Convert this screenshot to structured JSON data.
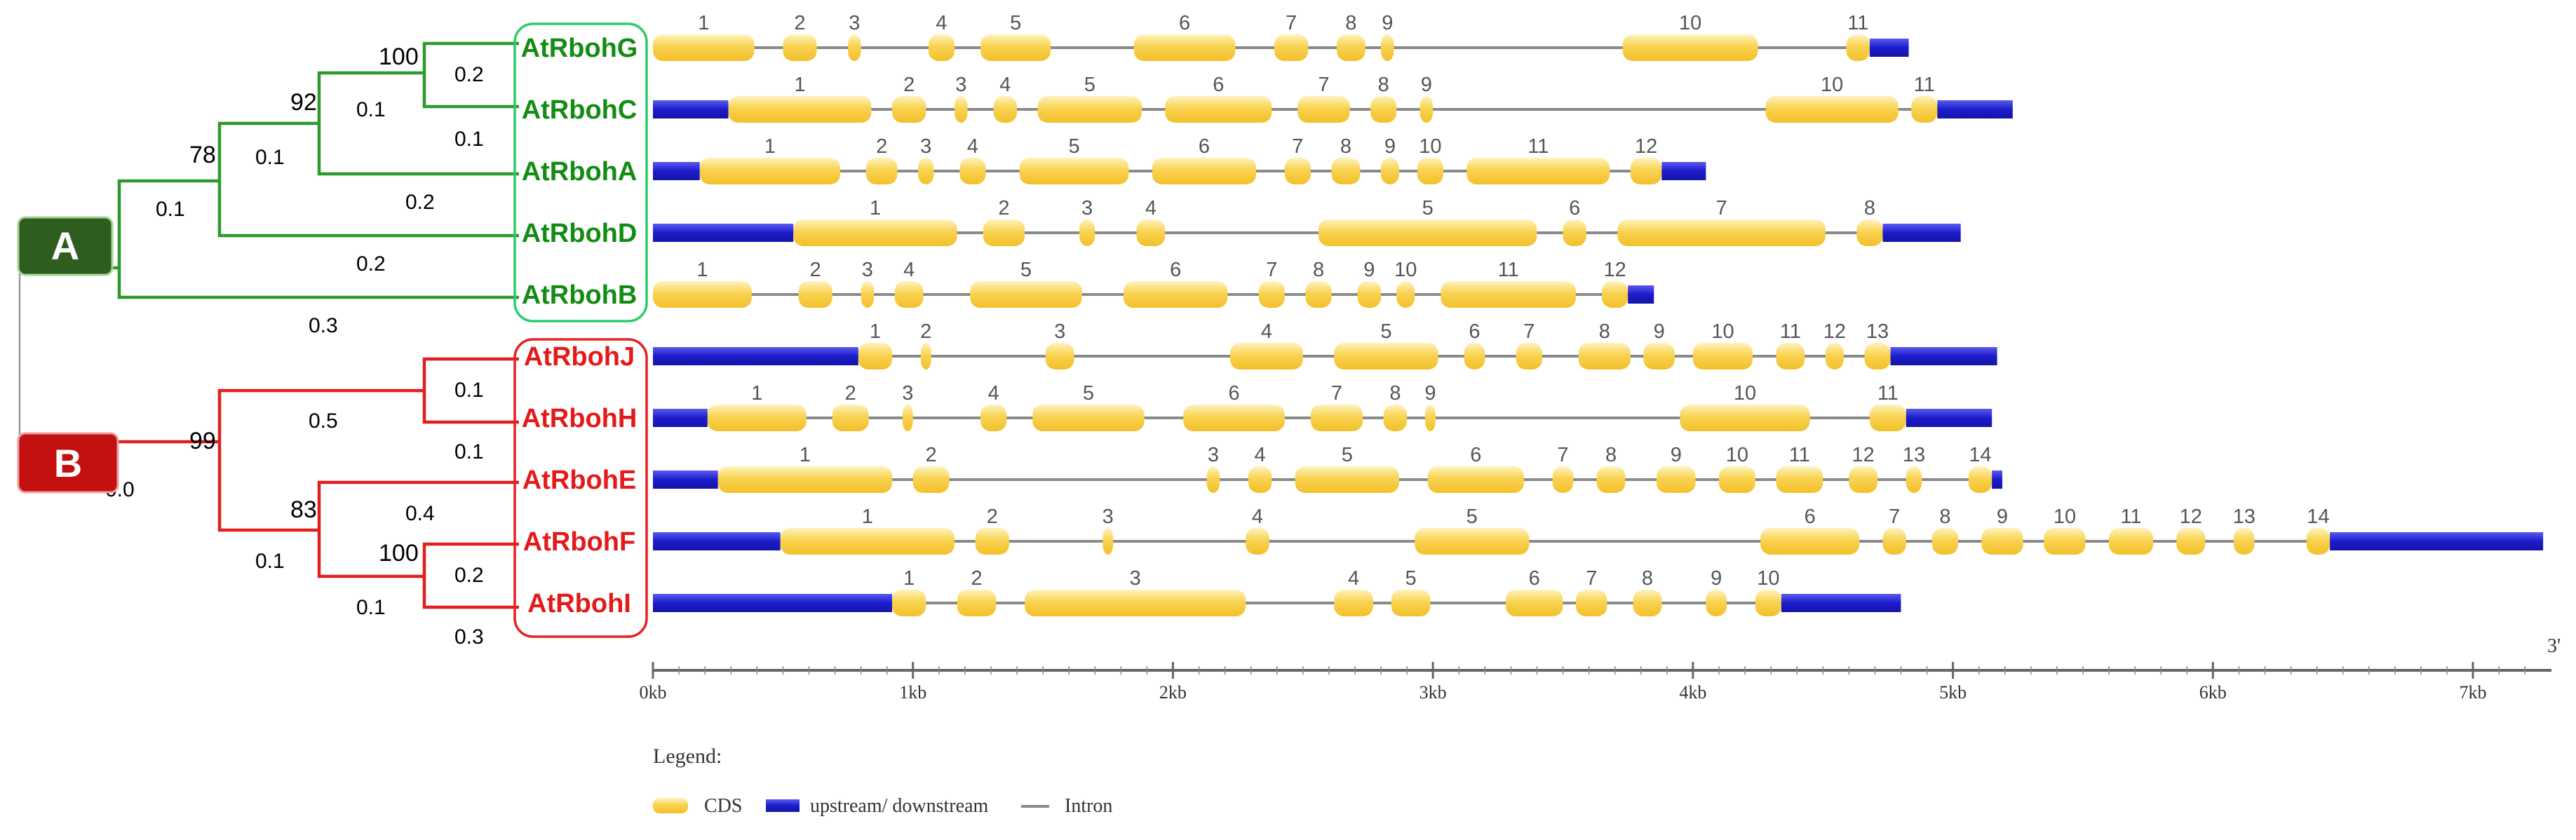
{
  "clades": {
    "a": {
      "letter": "A",
      "color": "#2e5e1e"
    },
    "b": {
      "letter": "B",
      "color": "#c41010"
    }
  },
  "tree_colors": {
    "a": "#2c9a2c",
    "b": "#e02020"
  },
  "bootstrap": {
    "gc": "100",
    "gca": "92",
    "gcad": "78",
    "jh": "99",
    "fi": "100",
    "efi": "83"
  },
  "branch_lengths": {
    "g": "0.2",
    "c": "0.1",
    "gc": "0.1",
    "a": "0.2",
    "gca": "0.1",
    "d": "0.2",
    "gcad": "0.1",
    "b": "0.3",
    "j": "0.1",
    "h": "0.1",
    "jh": "0.5",
    "e": "0.4",
    "f": "0.2",
    "i": "0.3",
    "fi": "0.1",
    "efi": "0.1",
    "bclade": "0.0"
  },
  "genes": [
    {
      "name": "AtRbohG",
      "color": "#138c13",
      "elements": [
        {
          "t": "cds",
          "s": 0.0,
          "e": 0.39,
          "n": "1"
        },
        {
          "t": "cds",
          "s": 0.5,
          "e": 0.63,
          "n": "2"
        },
        {
          "t": "cds",
          "s": 0.75,
          "e": 0.8,
          "n": "3"
        },
        {
          "t": "cds",
          "s": 1.06,
          "e": 1.16,
          "n": "4"
        },
        {
          "t": "cds",
          "s": 1.26,
          "e": 1.53,
          "n": "5"
        },
        {
          "t": "cds",
          "s": 1.85,
          "e": 2.24,
          "n": "6"
        },
        {
          "t": "cds",
          "s": 2.39,
          "e": 2.52,
          "n": "7"
        },
        {
          "t": "cds",
          "s": 2.63,
          "e": 2.74,
          "n": "8"
        },
        {
          "t": "cds",
          "s": 2.8,
          "e": 2.85,
          "n": "9"
        },
        {
          "t": "cds",
          "s": 3.73,
          "e": 4.25,
          "n": "10"
        },
        {
          "t": "cds",
          "s": 4.59,
          "e": 4.68,
          "n": "11"
        },
        {
          "t": "utr",
          "s": 4.68,
          "e": 4.83
        }
      ]
    },
    {
      "name": "AtRbohC",
      "color": "#138c13",
      "elements": [
        {
          "t": "utr",
          "s": 0.0,
          "e": 0.29
        },
        {
          "t": "cds",
          "s": 0.29,
          "e": 0.84,
          "n": "1"
        },
        {
          "t": "cds",
          "s": 0.92,
          "e": 1.05,
          "n": "2"
        },
        {
          "t": "cds",
          "s": 1.16,
          "e": 1.21,
          "n": "3"
        },
        {
          "t": "cds",
          "s": 1.31,
          "e": 1.4,
          "n": "4"
        },
        {
          "t": "cds",
          "s": 1.48,
          "e": 1.88,
          "n": "5"
        },
        {
          "t": "cds",
          "s": 1.97,
          "e": 2.38,
          "n": "6"
        },
        {
          "t": "cds",
          "s": 2.48,
          "e": 2.68,
          "n": "7"
        },
        {
          "t": "cds",
          "s": 2.76,
          "e": 2.86,
          "n": "8"
        },
        {
          "t": "cds",
          "s": 2.95,
          "e": 3.0,
          "n": "9"
        },
        {
          "t": "cds",
          "s": 4.28,
          "e": 4.79,
          "n": "10"
        },
        {
          "t": "cds",
          "s": 4.84,
          "e": 4.94,
          "n": "11"
        },
        {
          "t": "utr",
          "s": 4.94,
          "e": 5.23
        }
      ]
    },
    {
      "name": "AtRbohA",
      "color": "#138c13",
      "elements": [
        {
          "t": "utr",
          "s": 0.0,
          "e": 0.18
        },
        {
          "t": "cds",
          "s": 0.18,
          "e": 0.72,
          "n": "1"
        },
        {
          "t": "cds",
          "s": 0.82,
          "e": 0.94,
          "n": "2"
        },
        {
          "t": "cds",
          "s": 1.02,
          "e": 1.08,
          "n": "3"
        },
        {
          "t": "cds",
          "s": 1.18,
          "e": 1.28,
          "n": "4"
        },
        {
          "t": "cds",
          "s": 1.41,
          "e": 1.83,
          "n": "5"
        },
        {
          "t": "cds",
          "s": 1.92,
          "e": 2.32,
          "n": "6"
        },
        {
          "t": "cds",
          "s": 2.43,
          "e": 2.53,
          "n": "7"
        },
        {
          "t": "cds",
          "s": 2.61,
          "e": 2.72,
          "n": "8"
        },
        {
          "t": "cds",
          "s": 2.8,
          "e": 2.87,
          "n": "9"
        },
        {
          "t": "cds",
          "s": 2.94,
          "e": 3.04,
          "n": "10"
        },
        {
          "t": "cds",
          "s": 3.13,
          "e": 3.68,
          "n": "11"
        },
        {
          "t": "cds",
          "s": 3.76,
          "e": 3.88,
          "n": "12"
        },
        {
          "t": "utr",
          "s": 3.88,
          "e": 4.05
        }
      ]
    },
    {
      "name": "AtRbohD",
      "color": "#138c13",
      "elements": [
        {
          "t": "utr",
          "s": 0.0,
          "e": 0.54
        },
        {
          "t": "cds",
          "s": 0.54,
          "e": 1.17,
          "n": "1"
        },
        {
          "t": "cds",
          "s": 1.27,
          "e": 1.43,
          "n": "2"
        },
        {
          "t": "cds",
          "s": 1.64,
          "e": 1.7,
          "n": "3"
        },
        {
          "t": "cds",
          "s": 1.86,
          "e": 1.97,
          "n": "4"
        },
        {
          "t": "cds",
          "s": 2.56,
          "e": 3.4,
          "n": "5"
        },
        {
          "t": "cds",
          "s": 3.5,
          "e": 3.59,
          "n": "6"
        },
        {
          "t": "cds",
          "s": 3.71,
          "e": 4.51,
          "n": "7"
        },
        {
          "t": "cds",
          "s": 4.63,
          "e": 4.73,
          "n": "8"
        },
        {
          "t": "utr",
          "s": 4.73,
          "e": 5.03
        }
      ]
    },
    {
      "name": "AtRbohB",
      "color": "#138c13",
      "elements": [
        {
          "t": "cds",
          "s": 0.0,
          "e": 0.38,
          "n": "1"
        },
        {
          "t": "cds",
          "s": 0.56,
          "e": 0.69,
          "n": "2"
        },
        {
          "t": "cds",
          "s": 0.8,
          "e": 0.85,
          "n": "3"
        },
        {
          "t": "cds",
          "s": 0.93,
          "e": 1.04,
          "n": "4"
        },
        {
          "t": "cds",
          "s": 1.22,
          "e": 1.65,
          "n": "5"
        },
        {
          "t": "cds",
          "s": 1.81,
          "e": 2.21,
          "n": "6"
        },
        {
          "t": "cds",
          "s": 2.33,
          "e": 2.43,
          "n": "7"
        },
        {
          "t": "cds",
          "s": 2.51,
          "e": 2.61,
          "n": "8"
        },
        {
          "t": "cds",
          "s": 2.71,
          "e": 2.8,
          "n": "9"
        },
        {
          "t": "cds",
          "s": 2.86,
          "e": 2.93,
          "n": "10"
        },
        {
          "t": "cds",
          "s": 3.03,
          "e": 3.55,
          "n": "11"
        },
        {
          "t": "cds",
          "s": 3.65,
          "e": 3.75,
          "n": "12"
        },
        {
          "t": "utr",
          "s": 3.75,
          "e": 3.85
        }
      ]
    },
    {
      "name": "AtRbohJ",
      "color": "#e41a1a",
      "elements": [
        {
          "t": "utr",
          "s": 0.0,
          "e": 0.79
        },
        {
          "t": "cds",
          "s": 0.79,
          "e": 0.92,
          "n": "1"
        },
        {
          "t": "cds",
          "s": 1.03,
          "e": 1.07,
          "n": "2"
        },
        {
          "t": "cds",
          "s": 1.51,
          "e": 1.62,
          "n": "3"
        },
        {
          "t": "cds",
          "s": 2.22,
          "e": 2.5,
          "n": "4"
        },
        {
          "t": "cds",
          "s": 2.62,
          "e": 3.02,
          "n": "5"
        },
        {
          "t": "cds",
          "s": 3.12,
          "e": 3.2,
          "n": "6"
        },
        {
          "t": "cds",
          "s": 3.32,
          "e": 3.42,
          "n": "7"
        },
        {
          "t": "cds",
          "s": 3.56,
          "e": 3.76,
          "n": "8"
        },
        {
          "t": "cds",
          "s": 3.81,
          "e": 3.93,
          "n": "9"
        },
        {
          "t": "cds",
          "s": 4.0,
          "e": 4.23,
          "n": "10"
        },
        {
          "t": "cds",
          "s": 4.32,
          "e": 4.43,
          "n": "11"
        },
        {
          "t": "cds",
          "s": 4.51,
          "e": 4.58,
          "n": "12"
        },
        {
          "t": "cds",
          "s": 4.66,
          "e": 4.76,
          "n": "13"
        },
        {
          "t": "utr",
          "s": 4.76,
          "e": 5.17
        }
      ]
    },
    {
      "name": "AtRbohH",
      "color": "#e41a1a",
      "elements": [
        {
          "t": "utr",
          "s": 0.0,
          "e": 0.21
        },
        {
          "t": "cds",
          "s": 0.21,
          "e": 0.59,
          "n": "1"
        },
        {
          "t": "cds",
          "s": 0.69,
          "e": 0.83,
          "n": "2"
        },
        {
          "t": "cds",
          "s": 0.96,
          "e": 1.0,
          "n": "3"
        },
        {
          "t": "cds",
          "s": 1.26,
          "e": 1.36,
          "n": "4"
        },
        {
          "t": "cds",
          "s": 1.46,
          "e": 1.89,
          "n": "5"
        },
        {
          "t": "cds",
          "s": 2.04,
          "e": 2.43,
          "n": "6"
        },
        {
          "t": "cds",
          "s": 2.53,
          "e": 2.73,
          "n": "7"
        },
        {
          "t": "cds",
          "s": 2.81,
          "e": 2.9,
          "n": "8"
        },
        {
          "t": "cds",
          "s": 2.97,
          "e": 3.01,
          "n": "9"
        },
        {
          "t": "cds",
          "s": 3.95,
          "e": 4.45,
          "n": "10"
        },
        {
          "t": "cds",
          "s": 4.68,
          "e": 4.82,
          "n": "11"
        },
        {
          "t": "utr",
          "s": 4.82,
          "e": 5.15
        }
      ]
    },
    {
      "name": "AtRbohE",
      "color": "#e41a1a",
      "elements": [
        {
          "t": "utr",
          "s": 0.0,
          "e": 0.25
        },
        {
          "t": "cds",
          "s": 0.25,
          "e": 0.92,
          "n": "1"
        },
        {
          "t": "cds",
          "s": 1.0,
          "e": 1.14,
          "n": "2"
        },
        {
          "t": "cds",
          "s": 2.13,
          "e": 2.18,
          "n": "3"
        },
        {
          "t": "cds",
          "s": 2.29,
          "e": 2.38,
          "n": "4"
        },
        {
          "t": "cds",
          "s": 2.47,
          "e": 2.87,
          "n": "5"
        },
        {
          "t": "cds",
          "s": 2.98,
          "e": 3.35,
          "n": "6"
        },
        {
          "t": "cds",
          "s": 3.46,
          "e": 3.54,
          "n": "7"
        },
        {
          "t": "cds",
          "s": 3.63,
          "e": 3.74,
          "n": "8"
        },
        {
          "t": "cds",
          "s": 3.86,
          "e": 4.01,
          "n": "9"
        },
        {
          "t": "cds",
          "s": 4.1,
          "e": 4.24,
          "n": "10"
        },
        {
          "t": "cds",
          "s": 4.32,
          "e": 4.5,
          "n": "11"
        },
        {
          "t": "cds",
          "s": 4.6,
          "e": 4.71,
          "n": "12"
        },
        {
          "t": "cds",
          "s": 4.82,
          "e": 4.88,
          "n": "13"
        },
        {
          "t": "cds",
          "s": 5.06,
          "e": 5.15,
          "n": "14"
        },
        {
          "t": "utr",
          "s": 5.15,
          "e": 5.19
        }
      ]
    },
    {
      "name": "AtRbohF",
      "color": "#e41a1a",
      "elements": [
        {
          "t": "utr",
          "s": 0.0,
          "e": 0.49
        },
        {
          "t": "cds",
          "s": 0.49,
          "e": 1.16,
          "n": "1"
        },
        {
          "t": "cds",
          "s": 1.24,
          "e": 1.37,
          "n": "2"
        },
        {
          "t": "cds",
          "s": 1.73,
          "e": 1.77,
          "n": "3"
        },
        {
          "t": "cds",
          "s": 2.28,
          "e": 2.37,
          "n": "4"
        },
        {
          "t": "cds",
          "s": 2.93,
          "e": 3.37,
          "n": "5"
        },
        {
          "t": "cds",
          "s": 4.26,
          "e": 4.64,
          "n": "6"
        },
        {
          "t": "cds",
          "s": 4.73,
          "e": 4.82,
          "n": "7"
        },
        {
          "t": "cds",
          "s": 4.92,
          "e": 5.02,
          "n": "8"
        },
        {
          "t": "cds",
          "s": 5.11,
          "e": 5.27,
          "n": "9"
        },
        {
          "t": "cds",
          "s": 5.35,
          "e": 5.51,
          "n": "10"
        },
        {
          "t": "cds",
          "s": 5.6,
          "e": 5.77,
          "n": "11"
        },
        {
          "t": "cds",
          "s": 5.86,
          "e": 5.97,
          "n": "12"
        },
        {
          "t": "cds",
          "s": 6.08,
          "e": 6.16,
          "n": "13"
        },
        {
          "t": "cds",
          "s": 6.36,
          "e": 6.45,
          "n": "14"
        },
        {
          "t": "utr",
          "s": 6.45,
          "e": 7.27
        }
      ]
    },
    {
      "name": "AtRbohI",
      "color": "#e41a1a",
      "elements": [
        {
          "t": "utr",
          "s": 0.0,
          "e": 0.92
        },
        {
          "t": "cds",
          "s": 0.92,
          "e": 1.05,
          "n": "1"
        },
        {
          "t": "cds",
          "s": 1.17,
          "e": 1.32,
          "n": "2"
        },
        {
          "t": "cds",
          "s": 1.43,
          "e": 2.28,
          "n": "3"
        },
        {
          "t": "cds",
          "s": 2.62,
          "e": 2.77,
          "n": "4"
        },
        {
          "t": "cds",
          "s": 2.84,
          "e": 2.99,
          "n": "5"
        },
        {
          "t": "cds",
          "s": 3.28,
          "e": 3.5,
          "n": "6"
        },
        {
          "t": "cds",
          "s": 3.55,
          "e": 3.67,
          "n": "7"
        },
        {
          "t": "cds",
          "s": 3.77,
          "e": 3.88,
          "n": "8"
        },
        {
          "t": "cds",
          "s": 4.05,
          "e": 4.13,
          "n": "9"
        },
        {
          "t": "cds",
          "s": 4.24,
          "e": 4.34,
          "n": "10"
        },
        {
          "t": "utr",
          "s": 4.34,
          "e": 4.8
        }
      ]
    }
  ],
  "axis": {
    "ticks": [
      {
        "v": 0,
        "label": "0kb"
      },
      {
        "v": 1,
        "label": "1kb"
      },
      {
        "v": 2,
        "label": "2kb"
      },
      {
        "v": 3,
        "label": "3kb"
      },
      {
        "v": 4,
        "label": "4kb"
      },
      {
        "v": 5,
        "label": "5kb"
      },
      {
        "v": 6,
        "label": "6kb"
      },
      {
        "v": 7,
        "label": "7kb"
      }
    ],
    "end_label": "3'"
  },
  "colors": {
    "cds": "#f7cd45",
    "cds_light": "#fdeaa0",
    "utr": "#1c1ccc",
    "intron": "#8a8a8a"
  },
  "legend": {
    "title": "Legend:",
    "cds": "CDS",
    "utr": "upstream/ downstream",
    "intron": "Intron"
  }
}
